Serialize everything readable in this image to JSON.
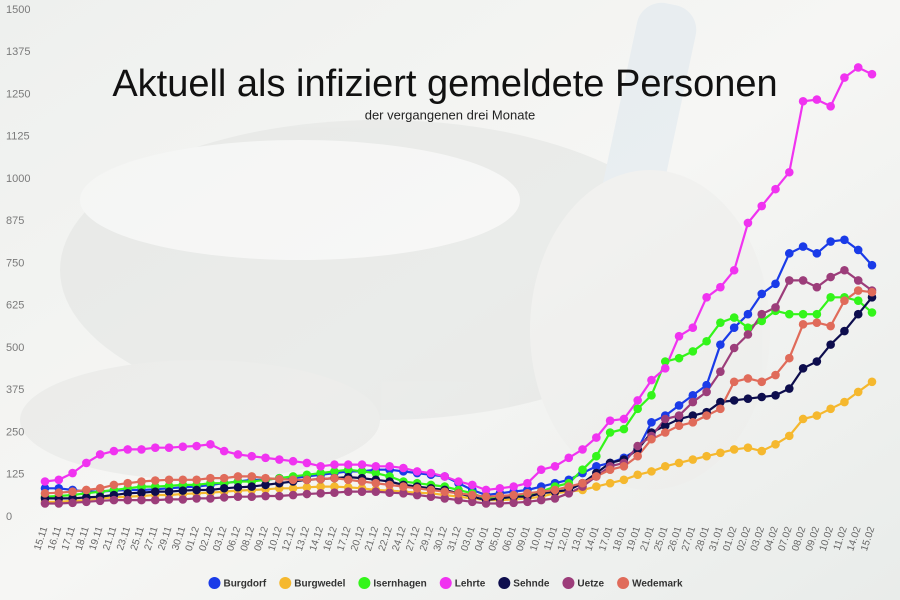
{
  "chart_data": {
    "type": "line",
    "title": "Aktuell als infiziert gemeldete Personen",
    "subtitle": "der vergangenen drei Monate",
    "categories": [
      "15.11",
      "16.11",
      "17.11",
      "18.11",
      "19.11",
      "21.11",
      "23.11",
      "25.11",
      "27.11",
      "29.11",
      "30.11",
      "01.12",
      "02.12",
      "03.12",
      "06.12",
      "08.12",
      "09.12",
      "10.12",
      "12.12",
      "13.12",
      "14.12",
      "16.12",
      "17.12",
      "20.12",
      "21.12",
      "22.12",
      "24.12",
      "27.12",
      "29.12",
      "30.12",
      "31.12",
      "03.01",
      "04.01",
      "05.01",
      "06.01",
      "09.01",
      "10.01",
      "11.01",
      "12.01",
      "13.01",
      "14.01",
      "17.01",
      "18.01",
      "19.01",
      "21.01",
      "25.01",
      "26.01",
      "27.01",
      "28.01",
      "31.01",
      "01.02",
      "02.02",
      "03.02",
      "04.02",
      "07.02",
      "08.02",
      "09.02",
      "10.02",
      "11.02",
      "14.02",
      "15.02"
    ],
    "ylim": [
      0,
      1500
    ],
    "yticks": [
      0,
      125,
      250,
      375,
      500,
      625,
      750,
      875,
      1000,
      1125,
      1250,
      1375,
      1500
    ],
    "series": [
      {
        "name": "Burgdorf",
        "color": "#1a3be8",
        "values": [
          85,
          85,
          80,
          75,
          75,
          78,
          80,
          80,
          82,
          85,
          88,
          90,
          95,
          100,
          105,
          110,
          110,
          115,
          115,
          120,
          125,
          130,
          135,
          135,
          140,
          140,
          135,
          130,
          125,
          120,
          100,
          80,
          65,
          70,
          75,
          80,
          90,
          100,
          110,
          130,
          150,
          160,
          175,
          200,
          280,
          300,
          330,
          360,
          390,
          510,
          560,
          600,
          660,
          690,
          780,
          800,
          780,
          815,
          820,
          790,
          745
        ]
      },
      {
        "name": "Burgwedel",
        "color": "#f5b82e",
        "values": [
          45,
          45,
          48,
          50,
          55,
          58,
          60,
          62,
          65,
          65,
          68,
          70,
          72,
          75,
          78,
          80,
          82,
          85,
          85,
          88,
          90,
          90,
          88,
          85,
          80,
          78,
          75,
          72,
          70,
          65,
          60,
          55,
          50,
          50,
          52,
          55,
          60,
          70,
          75,
          80,
          90,
          100,
          110,
          125,
          135,
          150,
          160,
          170,
          180,
          190,
          200,
          205,
          195,
          215,
          240,
          290,
          300,
          320,
          340,
          370,
          400
        ]
      },
      {
        "name": "Isernhagen",
        "color": "#33f51a",
        "values": [
          60,
          62,
          65,
          70,
          75,
          80,
          85,
          90,
          90,
          92,
          95,
          95,
          100,
          100,
          105,
          105,
          110,
          115,
          120,
          125,
          130,
          135,
          140,
          135,
          130,
          120,
          105,
          100,
          95,
          90,
          80,
          70,
          55,
          55,
          60,
          65,
          75,
          90,
          100,
          140,
          180,
          250,
          260,
          320,
          360,
          460,
          470,
          490,
          520,
          575,
          590,
          560,
          580,
          610,
          600,
          600,
          600,
          650,
          650,
          640,
          605
        ]
      },
      {
        "name": "Lehrte",
        "color": "#f033f0",
        "values": [
          105,
          110,
          130,
          160,
          185,
          195,
          200,
          200,
          205,
          205,
          208,
          210,
          215,
          195,
          185,
          180,
          175,
          170,
          165,
          160,
          150,
          155,
          155,
          155,
          150,
          150,
          145,
          135,
          130,
          120,
          105,
          95,
          80,
          85,
          90,
          100,
          140,
          150,
          175,
          200,
          235,
          285,
          290,
          345,
          405,
          440,
          535,
          560,
          650,
          680,
          730,
          870,
          920,
          970,
          1020,
          1230,
          1235,
          1215,
          1300,
          1330,
          1310
        ]
      },
      {
        "name": "Sehnde",
        "color": "#0d0d4d",
        "values": [
          55,
          55,
          55,
          58,
          60,
          65,
          70,
          72,
          75,
          75,
          78,
          80,
          80,
          85,
          88,
          90,
          95,
          100,
          105,
          110,
          112,
          115,
          118,
          115,
          110,
          105,
          95,
          90,
          85,
          80,
          70,
          60,
          50,
          55,
          60,
          60,
          70,
          75,
          80,
          100,
          130,
          160,
          170,
          200,
          250,
          270,
          290,
          300,
          310,
          340,
          345,
          350,
          355,
          360,
          380,
          440,
          460,
          510,
          550,
          600,
          650
        ]
      },
      {
        "name": "Uetze",
        "color": "#9c3d7a",
        "values": [
          40,
          40,
          42,
          45,
          48,
          50,
          50,
          50,
          50,
          52,
          52,
          55,
          55,
          58,
          60,
          60,
          62,
          62,
          65,
          68,
          70,
          72,
          75,
          75,
          75,
          72,
          70,
          65,
          60,
          55,
          50,
          45,
          40,
          40,
          42,
          45,
          50,
          55,
          70,
          90,
          120,
          150,
          160,
          210,
          240,
          290,
          300,
          340,
          370,
          430,
          500,
          540,
          600,
          620,
          700,
          700,
          680,
          710,
          730,
          700,
          670
        ]
      },
      {
        "name": "Wedemark",
        "color": "#e06b5a",
        "values": [
          70,
          72,
          75,
          80,
          85,
          95,
          100,
          105,
          108,
          110,
          110,
          110,
          115,
          115,
          120,
          120,
          115,
          112,
          110,
          110,
          112,
          115,
          110,
          105,
          100,
          95,
          90,
          85,
          80,
          75,
          70,
          65,
          60,
          62,
          65,
          70,
          75,
          80,
          90,
          100,
          120,
          140,
          150,
          180,
          230,
          250,
          270,
          280,
          300,
          320,
          400,
          410,
          400,
          420,
          470,
          570,
          575,
          565,
          640,
          670,
          665
        ]
      }
    ]
  }
}
